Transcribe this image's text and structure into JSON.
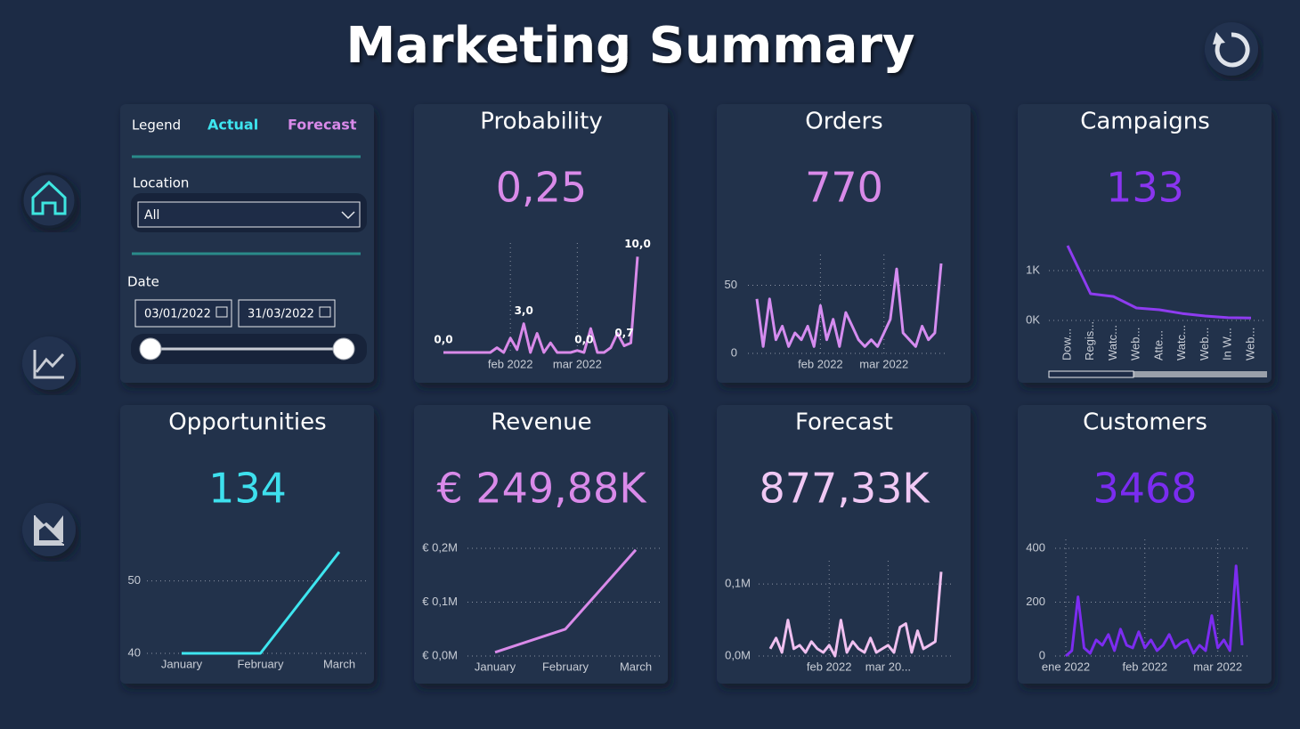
{
  "title": "Marketing Summary",
  "filters": {
    "legend": "Legend",
    "actual": "Actual",
    "forecast": "Forecast",
    "location_label": "Location",
    "location_value": "All",
    "date_label": "Date",
    "date_start": "03/01/2022",
    "date_end": "31/03/2022"
  },
  "cards": [
    {
      "title": "Probability",
      "kpi": "0,25",
      "kpi_color": "#d98ae9",
      "chart": {
        "type": "line",
        "color": "#d98ae9",
        "vgrid": true,
        "categories": [
          null,
          null,
          null,
          null,
          null,
          null,
          null,
          null,
          null,
          null,
          "feb 2022",
          null,
          null,
          null,
          null,
          null,
          null,
          null,
          null,
          null,
          "mar 2022",
          null,
          null,
          null,
          null,
          null,
          null,
          null,
          null,
          null
        ],
        "values": [
          0,
          0,
          0,
          0,
          0,
          0,
          0,
          0,
          0.5,
          0,
          1.5,
          0.3,
          3,
          0,
          2,
          0,
          1,
          0,
          0,
          0,
          0.2,
          0,
          2.5,
          0,
          0,
          0.5,
          2,
          0.7,
          1,
          10
        ],
        "value_labels": [
          "0,0",
          null,
          null,
          null,
          null,
          null,
          null,
          null,
          null,
          null,
          null,
          null,
          "3,0",
          null,
          null,
          null,
          null,
          null,
          null,
          null,
          null,
          "0,0",
          null,
          null,
          null,
          null,
          null,
          "0,7",
          null,
          "10,0"
        ],
        "ylim": [
          0,
          10.5
        ]
      }
    },
    {
      "title": "Orders",
      "kpi": "770",
      "kpi_color": "#d98ae9",
      "chart": {
        "type": "line",
        "color": "#d58cf0",
        "vgrid": true,
        "categories": [
          null,
          null,
          null,
          null,
          null,
          null,
          null,
          null,
          null,
          null,
          "feb 2022",
          null,
          null,
          null,
          null,
          null,
          null,
          null,
          null,
          null,
          "mar 2022",
          null,
          null,
          null,
          null,
          null,
          null,
          null,
          null,
          null
        ],
        "values": [
          40,
          5,
          40,
          10,
          20,
          5,
          15,
          10,
          20,
          5,
          35,
          10,
          25,
          5,
          30,
          20,
          10,
          5,
          10,
          5,
          15,
          25,
          62,
          15,
          10,
          5,
          20,
          10,
          15,
          66
        ],
        "ylim": [
          0,
          66
        ],
        "yticks": [
          0,
          50
        ]
      }
    },
    {
      "title": "Campaigns",
      "kpi": "133",
      "kpi_color": "#8a35f0",
      "chart": {
        "type": "line",
        "color": "#8e3cf0",
        "rotate": true,
        "categories": [
          "Dow...",
          "Regis...",
          "Watc...",
          "Web...",
          "Atte...",
          "Watc...",
          "Web...",
          "In W...",
          "Web..."
        ],
        "values": [
          1500,
          535,
          480,
          250,
          215,
          140,
          90,
          55,
          50
        ],
        "ylim": [
          0,
          1500
        ],
        "yticks": [
          {
            "value": 0,
            "label": "0K"
          },
          {
            "value": 1000,
            "label": "1K"
          }
        ]
      }
    },
    {
      "title": "Opportunities",
      "kpi": "134",
      "kpi_color": "#3ee0ee",
      "chart": {
        "type": "line",
        "color": "#3ee6f0",
        "categories": [
          "January",
          "February",
          "March"
        ],
        "values": [
          40,
          40,
          54
        ],
        "ylim": [
          40,
          55
        ],
        "yticks": [
          40,
          50
        ]
      }
    },
    {
      "title": "Revenue",
      "kpi": "€ 249,88K",
      "kpi_color": "#d98ae9",
      "chart": {
        "type": "line",
        "color": "#d98ae9",
        "categories": [
          "January",
          "February",
          "March"
        ],
        "values": [
          7000,
          50000,
          197000
        ],
        "ylim": [
          0,
          200000
        ],
        "yticks": [
          {
            "value": 0,
            "label": "€ 0,0M"
          },
          {
            "value": 100000,
            "label": "€ 0,1M"
          },
          {
            "value": 200000,
            "label": "€ 0,2M"
          }
        ]
      }
    },
    {
      "title": "Forecast",
      "kpi": "877,33K",
      "kpi_color": "#f0c8f4",
      "chart": {
        "type": "line",
        "color": "#f0c0f0",
        "vgrid": true,
        "categories": [
          null,
          null,
          null,
          null,
          null,
          null,
          null,
          null,
          null,
          null,
          "feb 2022",
          null,
          null,
          null,
          null,
          null,
          null,
          null,
          null,
          null,
          "mar 20...",
          null,
          null,
          null,
          null,
          null,
          null,
          null,
          null,
          null
        ],
        "values": [
          10000,
          25000,
          5000,
          50000,
          10000,
          15000,
          5000,
          20000,
          10000,
          5000,
          15000,
          0,
          50000,
          5000,
          20000,
          10000,
          5000,
          25000,
          5000,
          10000,
          15000,
          5000,
          40000,
          45000,
          5000,
          35000,
          10000,
          15000,
          20000,
          117000
        ],
        "ylim": [
          0,
          120000
        ],
        "yticks": [
          {
            "value": 0,
            "label": "0,0M"
          },
          {
            "value": 100000,
            "label": "0,1M"
          }
        ]
      }
    },
    {
      "title": "Customers",
      "kpi": "3468",
      "kpi_color": "#7a2cf0",
      "chart": {
        "type": "line",
        "color": "#7c2cf0",
        "vgrid": true,
        "categories": [
          "ene 2022",
          null,
          null,
          null,
          null,
          null,
          null,
          null,
          null,
          null,
          null,
          null,
          null,
          "feb 2022",
          null,
          null,
          null,
          null,
          null,
          null,
          null,
          null,
          null,
          null,
          null,
          "mar 2022",
          null,
          null,
          null,
          null
        ],
        "values": [
          0,
          20,
          220,
          30,
          10,
          60,
          40,
          80,
          20,
          100,
          40,
          30,
          90,
          30,
          60,
          20,
          40,
          80,
          30,
          50,
          60,
          10,
          40,
          20,
          150,
          30,
          60,
          20,
          335,
          40
        ],
        "ylim": [
          0,
          400
        ],
        "yticks": [
          0,
          200,
          400
        ]
      }
    }
  ]
}
